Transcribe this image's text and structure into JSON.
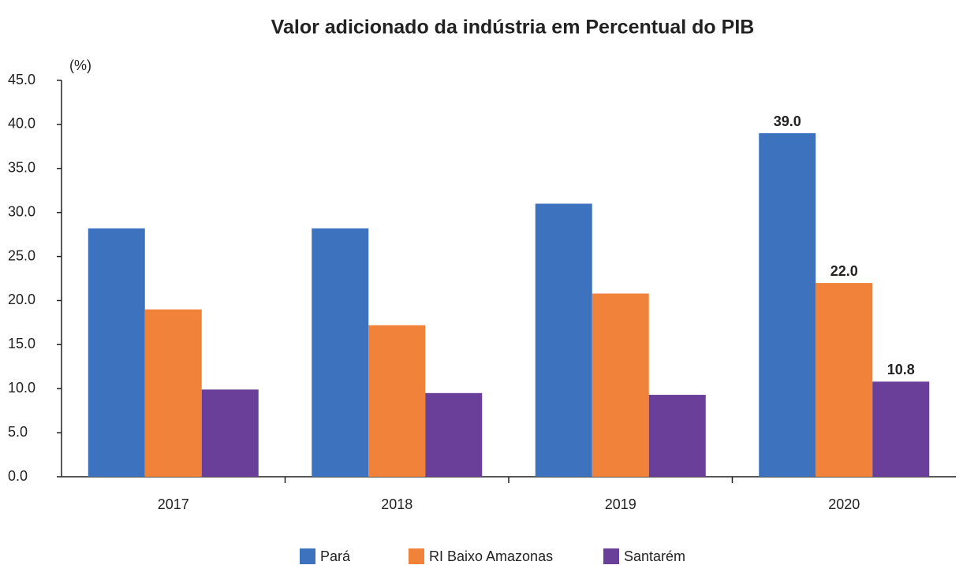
{
  "chart_data": {
    "type": "bar",
    "title": "Valor adicionado da indústria em Percentual do PIB",
    "y_label": "(%)",
    "categories": [
      "2017",
      "2018",
      "2019",
      "2020"
    ],
    "series": [
      {
        "name": "Pará",
        "color": "#3d72bf",
        "values": [
          28.2,
          28.2,
          31.0,
          39.0
        ],
        "value_labels": [
          null,
          null,
          null,
          "39.0"
        ]
      },
      {
        "name": "RI Baixo Amazonas",
        "color": "#f0823a",
        "values": [
          19.0,
          17.2,
          20.8,
          22.0
        ],
        "value_labels": [
          null,
          null,
          null,
          "22.0"
        ]
      },
      {
        "name": "Santarém",
        "color": "#6a3f99",
        "values": [
          9.9,
          9.5,
          9.3,
          10.8
        ],
        "value_labels": [
          null,
          null,
          null,
          "10.8"
        ]
      }
    ],
    "ylim": [
      0,
      45
    ],
    "yticks": [
      {
        "value": 0,
        "label": "0.0"
      },
      {
        "value": 5,
        "label": "5.0"
      },
      {
        "value": 10,
        "label": "10.0"
      },
      {
        "value": 15,
        "label": "15.0"
      },
      {
        "value": 20,
        "label": "20.0"
      },
      {
        "value": 25,
        "label": "25.0"
      },
      {
        "value": 30,
        "label": "30.0"
      },
      {
        "value": 35,
        "label": "35.0"
      },
      {
        "value": 40,
        "label": "40.0"
      },
      {
        "value": 45,
        "label": "45.0"
      }
    ],
    "grid": false,
    "legend": "bottom"
  }
}
